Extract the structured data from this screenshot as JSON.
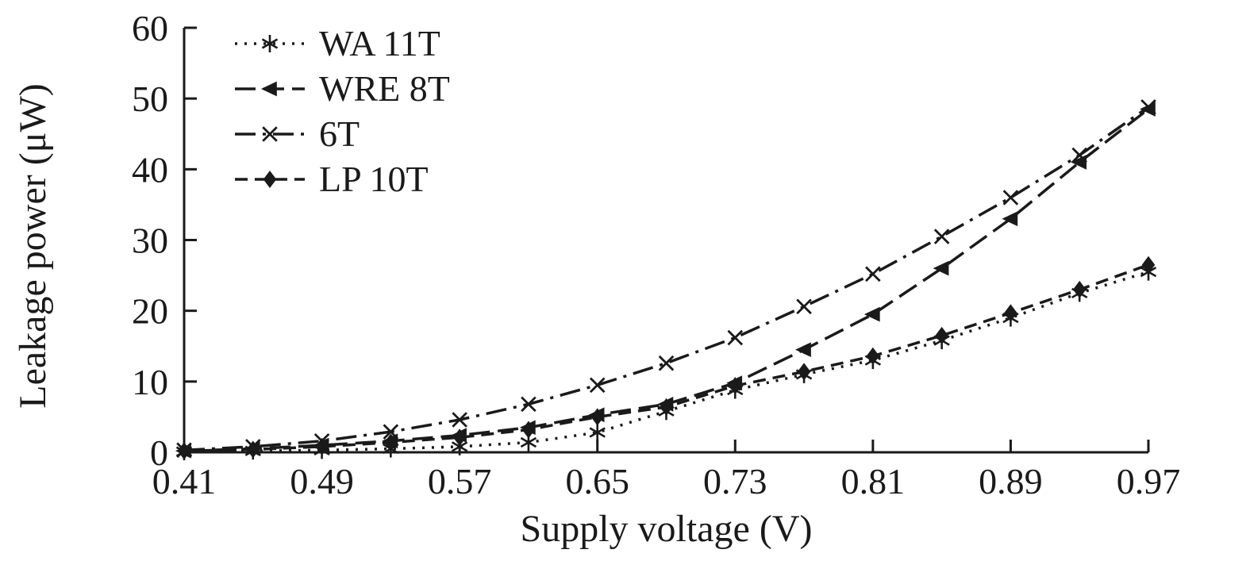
{
  "chart_data": {
    "type": "line",
    "title": "",
    "xlabel": "Supply voltage (V)",
    "ylabel": "Leakage power (μW)",
    "xlim": [
      0.41,
      0.97
    ],
    "ylim": [
      0,
      60
    ],
    "xticks": [
      0.41,
      0.49,
      0.57,
      0.65,
      0.73,
      0.81,
      0.89,
      0.97
    ],
    "yticks": [
      0,
      10,
      20,
      30,
      40,
      50,
      60
    ],
    "grid": false,
    "legend_position": "top-left",
    "background_color": "#ffffff",
    "line_color": "#1a1a1a",
    "x": [
      0.41,
      0.45,
      0.49,
      0.53,
      0.57,
      0.61,
      0.65,
      0.69,
      0.73,
      0.77,
      0.81,
      0.85,
      0.89,
      0.93,
      0.97
    ],
    "series": [
      {
        "name": "WA 11T",
        "marker": "asterisk",
        "dash": "dotted",
        "values": [
          0.1,
          0.2,
          0.3,
          0.5,
          0.8,
          1.4,
          2.8,
          5.8,
          8.8,
          11.0,
          13.0,
          15.8,
          19.0,
          22.5,
          25.5
        ]
      },
      {
        "name": "WRE 8T",
        "marker": "triangle-left",
        "dash": "longdash",
        "values": [
          0.2,
          0.5,
          1.0,
          1.6,
          2.4,
          3.5,
          5.3,
          6.8,
          9.8,
          14.5,
          19.5,
          26.0,
          33.0,
          41.0,
          48.5
        ]
      },
      {
        "name": "6T",
        "marker": "x",
        "dash": "dashdot",
        "values": [
          0.3,
          0.8,
          1.6,
          2.9,
          4.6,
          6.8,
          9.5,
          12.6,
          16.2,
          20.6,
          25.2,
          30.5,
          36.0,
          42.0,
          48.8
        ]
      },
      {
        "name": "LP 10T",
        "marker": "diamond",
        "dash": "dash",
        "values": [
          0.2,
          0.4,
          0.8,
          1.4,
          2.1,
          3.2,
          5.0,
          6.4,
          9.4,
          11.4,
          13.6,
          16.5,
          19.7,
          23.0,
          26.5
        ]
      }
    ]
  }
}
